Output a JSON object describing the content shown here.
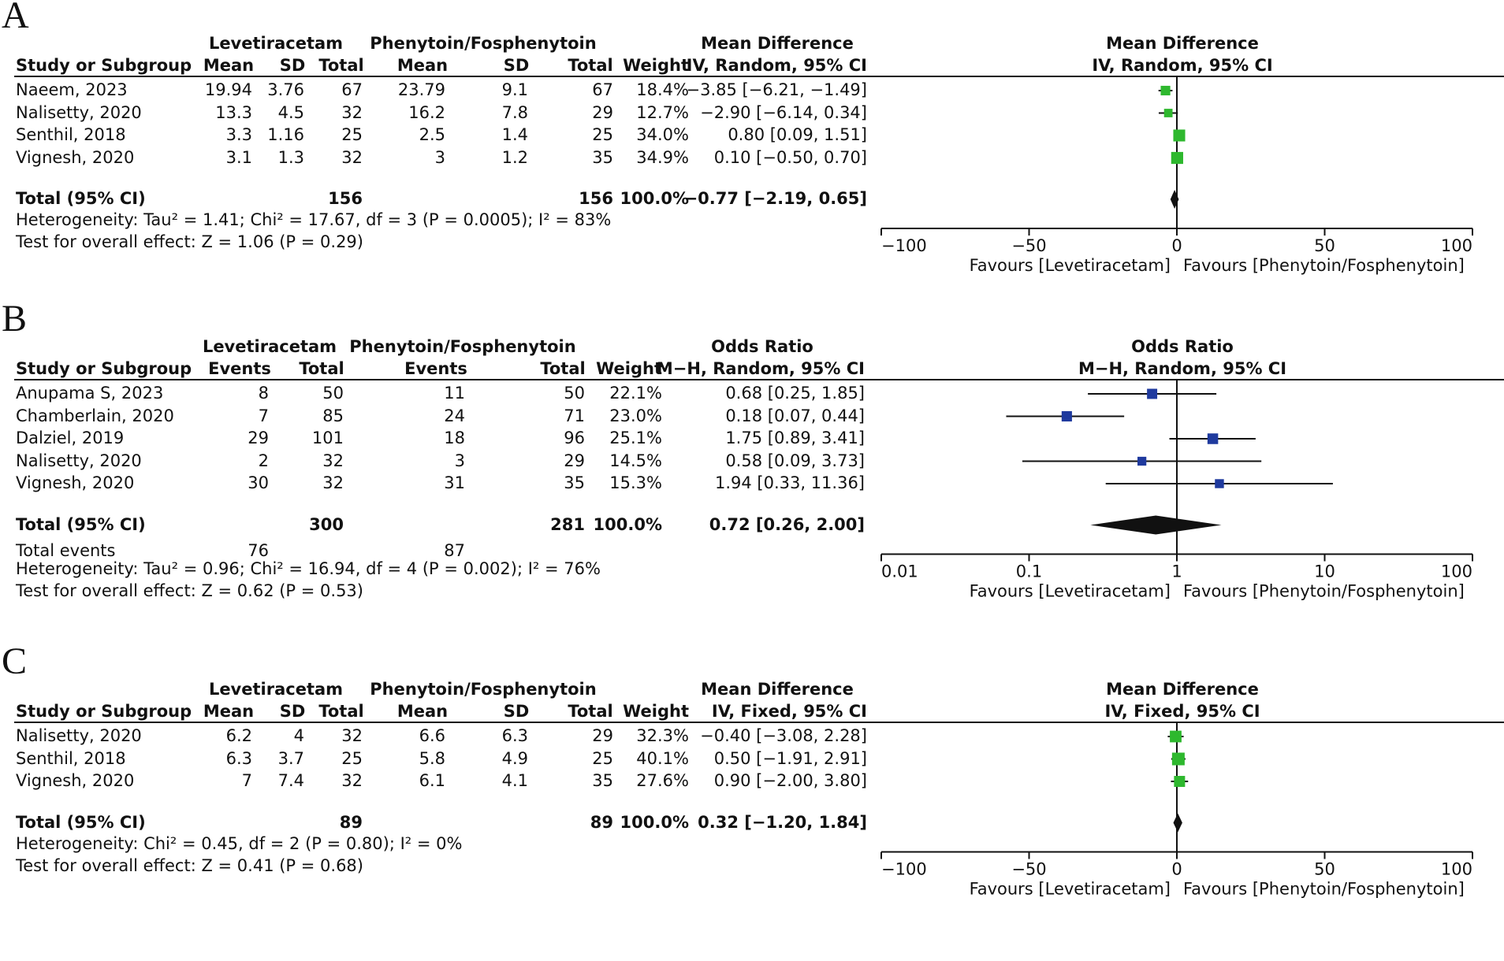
{
  "chart_data": [
    {
      "type": "forest",
      "panel_label": "A",
      "measure_title": "Mean Difference",
      "measure_method": "IV, Random, 95% CI",
      "group1": "Levetiracetam",
      "group2": "Phenytoin/Fosphenytoin",
      "col_study": "Study or Subgroup",
      "col_weight": "Weight",
      "group_cols": [
        "Mean",
        "SD",
        "Total"
      ],
      "studies": [
        {
          "name": "Naeem, 2023",
          "g1": [
            "19.94",
            "3.76",
            "67"
          ],
          "g2": [
            "23.79",
            "9.1",
            "67"
          ],
          "weight": "18.4%",
          "est_text": "−3.85 [−6.21, −1.49]",
          "est": -3.85,
          "lo": -6.21,
          "hi": -1.49,
          "w": 18.4
        },
        {
          "name": "Nalisetty, 2020",
          "g1": [
            "13.3",
            "4.5",
            "32"
          ],
          "g2": [
            "16.2",
            "7.8",
            "29"
          ],
          "weight": "12.7%",
          "est_text": "−2.90 [−6.14, 0.34]",
          "est": -2.9,
          "lo": -6.14,
          "hi": 0.34,
          "w": 12.7
        },
        {
          "name": "Senthil, 2018",
          "g1": [
            "3.3",
            "1.16",
            "25"
          ],
          "g2": [
            "2.5",
            "1.4",
            "25"
          ],
          "weight": "34.0%",
          "est_text": "0.80 [0.09, 1.51]",
          "est": 0.8,
          "lo": 0.09,
          "hi": 1.51,
          "w": 34.0
        },
        {
          "name": "Vignesh, 2020",
          "g1": [
            "3.1",
            "1.3",
            "32"
          ],
          "g2": [
            "3",
            "1.2",
            "35"
          ],
          "weight": "34.9%",
          "est_text": "0.10 [−0.50, 0.70]",
          "est": 0.1,
          "lo": -0.5,
          "hi": 0.7,
          "w": 34.9
        }
      ],
      "total": {
        "label": "Total (95% CI)",
        "g1_total": "156",
        "g2_total": "156",
        "weight": "100.0%",
        "est_text": "−0.77 [−2.19, 0.65]",
        "est": -0.77,
        "lo": -2.19,
        "hi": 0.65
      },
      "total_events": null,
      "heterogeneity": "Heterogeneity: Tau² = 1.41; Chi² = 17.67, df = 3 (P = 0.0005); I² = 83%",
      "overall_effect": "Test for overall effect: Z = 1.06 (P = 0.29)",
      "scale": "linear",
      "xlim": [
        -100,
        100
      ],
      "ticks": [
        -100,
        -50,
        0,
        50,
        100
      ],
      "tick_labels": [
        "−100",
        "−50",
        "0",
        "50",
        "100"
      ],
      "favours_left": "Favours [Levetiracetam]",
      "favours_right": "Favours [Phenytoin/Fosphenytoin]",
      "marker_color": "#2eb82e"
    },
    {
      "type": "forest",
      "panel_label": "B",
      "measure_title": "Odds Ratio",
      "measure_method": "M−H, Random, 95% CI",
      "group1": "Levetiracetam",
      "group2": "Phenytoin/Fosphenytoin",
      "col_study": "Study or Subgroup",
      "col_weight": "Weight",
      "group_cols": [
        "Events",
        "Total"
      ],
      "studies": [
        {
          "name": "Anupama S, 2023",
          "g1": [
            "8",
            "50"
          ],
          "g2": [
            "11",
            "50"
          ],
          "weight": "22.1%",
          "est_text": "0.68 [0.25, 1.85]",
          "est": 0.68,
          "lo": 0.25,
          "hi": 1.85,
          "w": 22.1
        },
        {
          "name": "Chamberlain, 2020",
          "g1": [
            "7",
            "85"
          ],
          "g2": [
            "24",
            "71"
          ],
          "weight": "23.0%",
          "est_text": "0.18 [0.07, 0.44]",
          "est": 0.18,
          "lo": 0.07,
          "hi": 0.44,
          "w": 23.0
        },
        {
          "name": "Dalziel, 2019",
          "g1": [
            "29",
            "101"
          ],
          "g2": [
            "18",
            "96"
          ],
          "weight": "25.1%",
          "est_text": "1.75 [0.89, 3.41]",
          "est": 1.75,
          "lo": 0.89,
          "hi": 3.41,
          "w": 25.1
        },
        {
          "name": "Nalisetty, 2020",
          "g1": [
            "2",
            "32"
          ],
          "g2": [
            "3",
            "29"
          ],
          "weight": "14.5%",
          "est_text": "0.58 [0.09, 3.73]",
          "est": 0.58,
          "lo": 0.09,
          "hi": 3.73,
          "w": 14.5
        },
        {
          "name": "Vignesh, 2020",
          "g1": [
            "30",
            "32"
          ],
          "g2": [
            "31",
            "35"
          ],
          "weight": "15.3%",
          "est_text": "1.94 [0.33, 11.36]",
          "est": 1.94,
          "lo": 0.33,
          "hi": 11.36,
          "w": 15.3
        }
      ],
      "total": {
        "label": "Total (95% CI)",
        "g1_total": "300",
        "g2_total": "281",
        "weight": "100.0%",
        "est_text": "0.72 [0.26, 2.00]",
        "est": 0.72,
        "lo": 0.26,
        "hi": 2.0
      },
      "total_events": {
        "label": "Total events",
        "g1": "76",
        "g2": "87"
      },
      "heterogeneity": "Heterogeneity: Tau² = 0.96; Chi² = 16.94, df = 4 (P = 0.002); I² = 76%",
      "overall_effect": "Test for overall effect: Z = 0.62 (P = 0.53)",
      "scale": "log",
      "xlim": [
        0.01,
        100
      ],
      "ticks": [
        0.01,
        0.1,
        1,
        10,
        100
      ],
      "tick_labels": [
        "0.01",
        "0.1",
        "1",
        "10",
        "100"
      ],
      "favours_left": "Favours [Levetiracetam]",
      "favours_right": "Favours [Phenytoin/Fosphenytoin]",
      "marker_color": "#1f3a9e"
    },
    {
      "type": "forest",
      "panel_label": "C",
      "measure_title": "Mean Difference",
      "measure_method": "IV, Fixed, 95% CI",
      "group1": "Levetiracetam",
      "group2": "Phenytoin/Fosphenytoin",
      "col_study": "Study or Subgroup",
      "col_weight": "Weight",
      "group_cols": [
        "Mean",
        "SD",
        "Total"
      ],
      "studies": [
        {
          "name": "Nalisetty, 2020",
          "g1": [
            "6.2",
            "4",
            "32"
          ],
          "g2": [
            "6.6",
            "6.3",
            "29"
          ],
          "weight": "32.3%",
          "est_text": "−0.40 [−3.08, 2.28]",
          "est": -0.4,
          "lo": -3.08,
          "hi": 2.28,
          "w": 32.3
        },
        {
          "name": "Senthil, 2018",
          "g1": [
            "6.3",
            "3.7",
            "25"
          ],
          "g2": [
            "5.8",
            "4.9",
            "25"
          ],
          "weight": "40.1%",
          "est_text": "0.50 [−1.91, 2.91]",
          "est": 0.5,
          "lo": -1.91,
          "hi": 2.91,
          "w": 40.1
        },
        {
          "name": "Vignesh, 2020",
          "g1": [
            "7",
            "7.4",
            "32"
          ],
          "g2": [
            "6.1",
            "4.1",
            "35"
          ],
          "weight": "27.6%",
          "est_text": "0.90 [−2.00, 3.80]",
          "est": 0.9,
          "lo": -2.0,
          "hi": 3.8,
          "w": 27.6
        }
      ],
      "total": {
        "label": "Total (95% CI)",
        "g1_total": "89",
        "g2_total": "89",
        "weight": "100.0%",
        "est_text": "0.32 [−1.20, 1.84]",
        "est": 0.32,
        "lo": -1.2,
        "hi": 1.84
      },
      "total_events": null,
      "heterogeneity": "Heterogeneity: Chi² = 0.45, df = 2 (P = 0.80); I² = 0%",
      "overall_effect": "Test for overall effect: Z = 0.41 (P = 0.68)",
      "scale": "linear",
      "xlim": [
        -100,
        100
      ],
      "ticks": [
        -100,
        -50,
        0,
        50,
        100
      ],
      "tick_labels": [
        "−100",
        "−50",
        "0",
        "50",
        "100"
      ],
      "favours_left": "Favours [Levetiracetam]",
      "favours_right": "Favours [Phenytoin/Fosphenytoin]",
      "marker_color": "#2eb82e"
    }
  ]
}
